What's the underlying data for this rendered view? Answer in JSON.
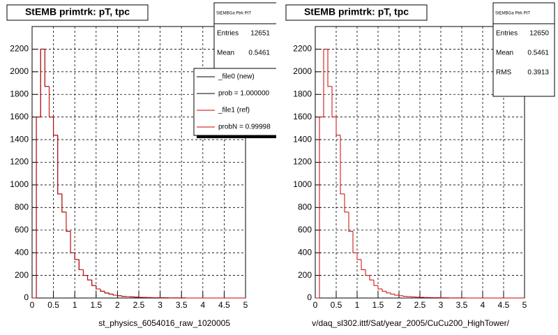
{
  "chart_data": [
    {
      "type": "histogram",
      "title": "StEMB primtrk: pT, tpc",
      "x_label": "st_physics_6054016_raw_1020005",
      "bins": [
        0,
        0.1,
        0.2,
        0.3,
        0.4,
        0.5,
        0.6,
        0.7,
        0.8,
        0.9,
        1,
        1.1,
        1.2,
        1.3,
        1.4,
        1.5,
        1.6,
        1.7,
        1.8,
        1.9,
        2,
        2.1,
        2.2,
        2.3,
        2.4,
        2.5,
        2.6,
        2.7,
        2.8,
        2.9,
        3,
        3.1,
        3.2,
        3.3,
        3.4,
        3.5,
        3.6,
        3.7,
        3.8,
        3.9,
        4,
        4.1,
        4.2,
        4.3,
        4.4,
        4.5,
        4.6,
        4.7,
        4.8,
        4.9,
        5
      ],
      "series": [
        {
          "name": "_file0 (new)",
          "color": "#000000",
          "values": [
            0,
            1600,
            2200,
            1870,
            1600,
            1440,
            920,
            760,
            590,
            400,
            340,
            250,
            200,
            160,
            110,
            80,
            60,
            45,
            35,
            25,
            20,
            15,
            12,
            10,
            8,
            6,
            5,
            4,
            3,
            3,
            2,
            2,
            1,
            1,
            1,
            1,
            0,
            0,
            0,
            0,
            0,
            0,
            0,
            0,
            0,
            0,
            0,
            0,
            0,
            0
          ]
        },
        {
          "name": "_file1 (ref)",
          "color": "#cc0000",
          "values": [
            0,
            1600,
            2200,
            1870,
            1600,
            1440,
            920,
            760,
            590,
            400,
            340,
            250,
            200,
            160,
            110,
            80,
            60,
            45,
            35,
            25,
            20,
            15,
            12,
            10,
            8,
            6,
            5,
            4,
            3,
            3,
            2,
            2,
            1,
            1,
            1,
            1,
            0,
            0,
            0,
            0,
            0,
            0,
            0,
            0,
            0,
            0,
            0,
            0,
            0,
            0
          ]
        }
      ],
      "legend_notes": [
        {
          "label": "prob = 1.000000",
          "color": "#000000"
        },
        {
          "label": "probN = 0.99998",
          "color": "#cc0000"
        }
      ],
      "stats": {
        "name": "StEMBGa Ptrk PtT",
        "entries": [
          {
            "label": "Entries",
            "value": 12651
          },
          {
            "label": "Mean",
            "value": 0.5461
          }
        ]
      },
      "xlim": [
        0,
        5
      ],
      "xticks": [
        0,
        0.5,
        1,
        1.5,
        2,
        2.5,
        3,
        3.5,
        4,
        4.5,
        5
      ],
      "ylim": [
        0,
        2400
      ],
      "yticks": [
        0,
        200,
        400,
        600,
        800,
        1000,
        1200,
        1400,
        1600,
        1800,
        2000,
        2200
      ],
      "grid": true
    },
    {
      "type": "histogram",
      "title": "StEMB primtrk: pT, tpc",
      "x_label": "v/daq_sl302.ittf/Sat/year_2005/CuCu200_HighTower/",
      "bins": [
        0,
        0.1,
        0.2,
        0.3,
        0.4,
        0.5,
        0.6,
        0.7,
        0.8,
        0.9,
        1,
        1.1,
        1.2,
        1.3,
        1.4,
        1.5,
        1.6,
        1.7,
        1.8,
        1.9,
        2,
        2.1,
        2.2,
        2.3,
        2.4,
        2.5,
        2.6,
        2.7,
        2.8,
        2.9,
        3,
        3.1,
        3.2,
        3.3,
        3.4,
        3.5,
        3.6,
        3.7,
        3.8,
        3.9,
        4,
        4.1,
        4.2,
        4.3,
        4.4,
        4.5,
        4.6,
        4.7,
        4.8,
        4.9,
        5
      ],
      "series": [
        {
          "color": "#cc0000",
          "values": [
            0,
            1600,
            2200,
            1870,
            1600,
            1440,
            920,
            760,
            590,
            400,
            340,
            250,
            200,
            160,
            110,
            80,
            60,
            45,
            35,
            25,
            20,
            15,
            12,
            10,
            8,
            6,
            5,
            4,
            3,
            3,
            2,
            2,
            1,
            1,
            1,
            1,
            0,
            0,
            0,
            0,
            0,
            0,
            0,
            0,
            0,
            0,
            0,
            0,
            0,
            0
          ]
        }
      ],
      "stats": {
        "name": "StEMBGa Ptrk PtT",
        "entries": [
          {
            "label": "Entries",
            "value": 12650
          },
          {
            "label": "Mean",
            "value": 0.5461
          },
          {
            "label": "RMS",
            "value": 0.3913
          }
        ]
      },
      "xlim": [
        0,
        5
      ],
      "xticks": [
        0,
        0.5,
        1,
        1.5,
        2,
        2.5,
        3,
        3.5,
        4,
        4.5,
        5
      ],
      "ylim": [
        0,
        2400
      ],
      "yticks": [
        0,
        200,
        400,
        600,
        800,
        1000,
        1200,
        1400,
        1600,
        1800,
        2000,
        2200
      ],
      "grid": true
    }
  ]
}
